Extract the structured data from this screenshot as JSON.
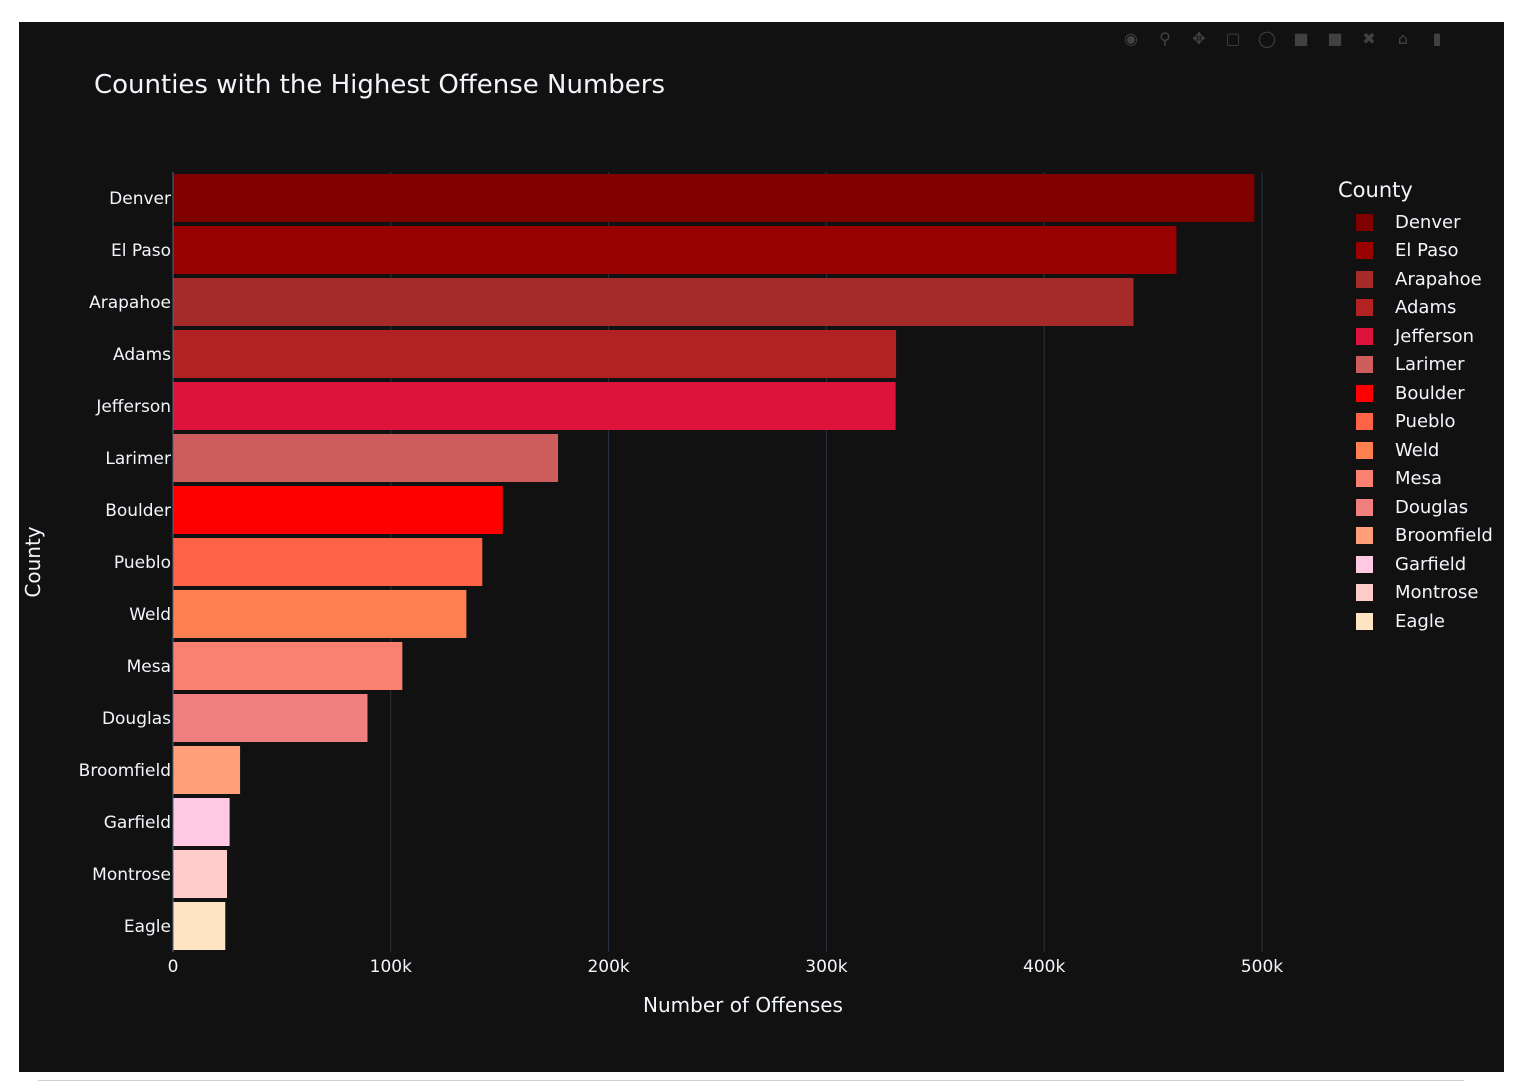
{
  "chart_data": {
    "type": "bar",
    "orientation": "horizontal",
    "title": "Counties with the Highest Offense Numbers",
    "xlabel": "Number of Offenses",
    "ylabel": "County",
    "xlim": [
      0,
      570000
    ],
    "x_ticks": [
      {
        "value": 0,
        "label": "0"
      },
      {
        "value": 100000,
        "label": "100k"
      },
      {
        "value": 200000,
        "label": "200k"
      },
      {
        "value": 300000,
        "label": "300k"
      },
      {
        "value": 400000,
        "label": "400k"
      },
      {
        "value": 500000,
        "label": "500k"
      }
    ],
    "grid": true,
    "legend_title": "County",
    "legend_position": "right",
    "categories": [
      "Denver",
      "El Paso",
      "Arapahoe",
      "Adams",
      "Jefferson",
      "Larimer",
      "Boulder",
      "Pueblo",
      "Weld",
      "Mesa",
      "Douglas",
      "Broomfield",
      "Garfield",
      "Montrose",
      "Eagle"
    ],
    "values": [
      496500,
      460700,
      441000,
      332000,
      331800,
      176800,
      151400,
      142000,
      134700,
      105300,
      89300,
      30800,
      26000,
      24800,
      24000
    ],
    "colors": [
      "#800000",
      "#990000",
      "#a52a2a",
      "#b22222",
      "#dc143c",
      "#cd5c5c",
      "#ff0000",
      "#ff6347",
      "#ff7f50",
      "#fa8072",
      "#f08080",
      "#ffa07a",
      "#ffc9e3",
      "#ffcccb",
      "#ffe4c4"
    ]
  },
  "theme": {
    "background": "#111111",
    "text": "#f2f5fa",
    "grid": "#283442"
  }
}
